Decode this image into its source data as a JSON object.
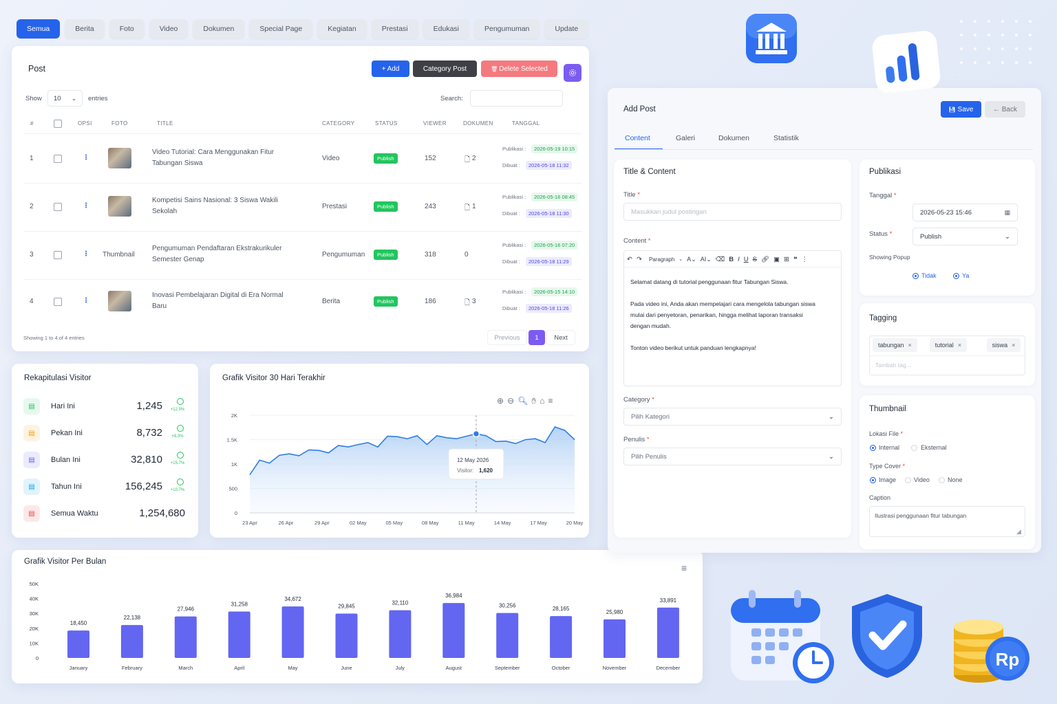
{
  "top_tabs": [
    "Semua",
    "Berita",
    "Foto",
    "Video",
    "Dokumen",
    "Special Page",
    "Kegiatan",
    "Prestasi",
    "Edukasi",
    "Pengumuman",
    "Update"
  ],
  "post": {
    "title": "Post",
    "add_label": "+ Add",
    "category_label": "Category Post",
    "delete_label": "Delete Selected",
    "show_label": "Show",
    "entries_value": "10",
    "entries_label": "entries",
    "search_label": "Search:",
    "columns": [
      "#",
      "OPSI",
      "FOTO",
      "TITLE",
      "CATEGORY",
      "STATUS",
      "VIEWER",
      "DOKUMEN",
      "TANGGAL"
    ],
    "rows": [
      {
        "no": "1",
        "foto": "",
        "title1": "Video Tutorial: Cara Menggunakan Fitur",
        "title2": "Tabungan Siswa",
        "category": "Video",
        "status": "Publish",
        "viewer": "152",
        "dokumen": "2",
        "publikasi": "2026-05-19 10:15",
        "dibuat": "2026-05-18 11:32"
      },
      {
        "no": "2",
        "foto": "",
        "title1": "Kompetisi Sains Nasional: 3 Siswa Wakili",
        "title2": "Sekolah",
        "category": "Prestasi",
        "status": "Publish",
        "viewer": "243",
        "dokumen": "1",
        "publikasi": "2026-05-16 08:45",
        "dibuat": "2026-05-18 11:30"
      },
      {
        "no": "3",
        "foto": "Thumbnail",
        "title1": "Pengumuman Pendaftaran Ekstrakurikuler",
        "title2": "Semester Genap",
        "category": "Pengumuman",
        "status": "Publish",
        "viewer": "318",
        "dokumen": "0",
        "publikasi": "2026-05-16 07:20",
        "dibuat": "2026-05-18 11:29"
      },
      {
        "no": "4",
        "foto": "",
        "title1": "Inovasi Pembelajaran Digital di Era Normal",
        "title2": "Baru",
        "category": "Berita",
        "status": "Publish",
        "viewer": "186",
        "dokumen": "3",
        "publikasi": "2026-05-15 14:10",
        "dibuat": "2026-05-18 11:26"
      }
    ],
    "publikasi_label": "Publikasi :",
    "dibuat_label": "Dibuat :",
    "footer": "Showing 1 to 4 of 4 entries",
    "prev": "Previous",
    "page": "1",
    "next": "Next"
  },
  "rekap": {
    "title": "Rekapitulasi Visitor",
    "items": [
      {
        "label": "Hari Ini",
        "value": "1,245",
        "pct": "+12.5%",
        "color": "#22c55e",
        "bg": "#e7f8ee"
      },
      {
        "label": "Pekan Ini",
        "value": "8,732",
        "pct": "+8.3%",
        "color": "#f59e0b",
        "bg": "#fdf3e2"
      },
      {
        "label": "Bulan Ini",
        "value": "32,810",
        "pct": "+15.7%",
        "color": "#6366f1",
        "bg": "#eceafd"
      },
      {
        "label": "Tahun Ini",
        "value": "156,245",
        "pct": "+10.7%",
        "color": "#0ea5e9",
        "bg": "#e2f3fc"
      },
      {
        "label": "Semua Waktu",
        "value": "1,254,680",
        "pct": "",
        "color": "#ef4444",
        "bg": "#fde8e8"
      }
    ]
  },
  "chart_data": [
    {
      "type": "area",
      "title": "Grafik Visitor 30 Hari Terakhir",
      "ylim": [
        0,
        2000
      ],
      "yticks": [
        "0",
        "500",
        "1K",
        "1.5K",
        "2K"
      ],
      "xticks": [
        "23 Apr",
        "26 Apr",
        "29 Apr",
        "02 May",
        "05 May",
        "08 May",
        "11 May",
        "14 May",
        "17 May",
        "20 May"
      ],
      "values": [
        780,
        1080,
        1020,
        1180,
        1210,
        1170,
        1290,
        1280,
        1230,
        1380,
        1350,
        1400,
        1440,
        1350,
        1570,
        1560,
        1520,
        1580,
        1400,
        1580,
        1540,
        1520,
        1570,
        1620,
        1580,
        1460,
        1470,
        1420,
        1500,
        1520,
        1440,
        1760,
        1690,
        1500
      ],
      "tooltip_title": "12 May 2026",
      "tooltip_label": "Visitor:",
      "tooltip_value": "1,620",
      "color": "#2f7de1"
    },
    {
      "type": "bar",
      "title": "Grafik Visitor Per Bulan",
      "categories": [
        "January",
        "February",
        "March",
        "April",
        "May",
        "June",
        "July",
        "August",
        "September",
        "October",
        "November",
        "December"
      ],
      "values": [
        18450,
        22138,
        27946,
        31258,
        34672,
        29845,
        32110,
        36984,
        30256,
        28165,
        25980,
        33891
      ],
      "value_labels": [
        "18,450",
        "22,138",
        "27,946",
        "31,258",
        "34,672",
        "29,845",
        "32,110",
        "36,984",
        "30,256",
        "28,165",
        "25,980",
        "33,891"
      ],
      "ylim": [
        0,
        50000
      ],
      "yticks": [
        "0",
        "10K",
        "20K",
        "30K",
        "40K",
        "50K"
      ],
      "color": "#6366f1"
    }
  ],
  "add_post": {
    "title": "Add Post",
    "save_label": "Save",
    "back_label": "← Back",
    "tabs": [
      "Content",
      "Galeri",
      "Dokumen",
      "Statistik"
    ],
    "section_title": "Title & Content",
    "title_label": "Title",
    "title_placeholder": "Masukkan judul postingan",
    "content_label": "Content",
    "paragraph": "Paragraph",
    "content_lines": [
      "Selamat datang di tutorial penggunaan fitur Tabungan Siswa.",
      "Pada video ini, Anda akan mempelajari cara mengelola tabungan siswa",
      "mulai dari penyetoran, penarikan, hingga melihat laporan transaksi",
      "dengan mudah.",
      "Tonton video berikut untuk panduan lengkapnya!"
    ],
    "category_label": "Category",
    "category_placeholder": "Pilih Kategori",
    "penulis_label": "Penulis",
    "penulis_placeholder": "Pilih Penulis"
  },
  "publikasi": {
    "title": "Publikasi",
    "tanggal_label": "Tanggal",
    "tanggal_value": "2026-05-23 15:46",
    "status_label": "Status",
    "status_value": "Publish",
    "popup_label": "Showing Popup",
    "tidak": "Tidak",
    "ya": "Ya"
  },
  "tagging": {
    "title": "Tagging",
    "tags": [
      "tabungan",
      "tutorial",
      "siswa"
    ],
    "placeholder": "Tambah tag..."
  },
  "thumbnail": {
    "title": "Thumbnail",
    "lokasi_label": "Lokasi File",
    "internal": "Internal",
    "eksternal": "Eksternal",
    "type_label": "Type Cover",
    "image": "Image",
    "video": "Video",
    "none": "None",
    "caption_label": "Caption",
    "caption_value": "Ilustrasi penggunaan fitur tabungan"
  },
  "decor": {
    "rp": "Rp"
  }
}
